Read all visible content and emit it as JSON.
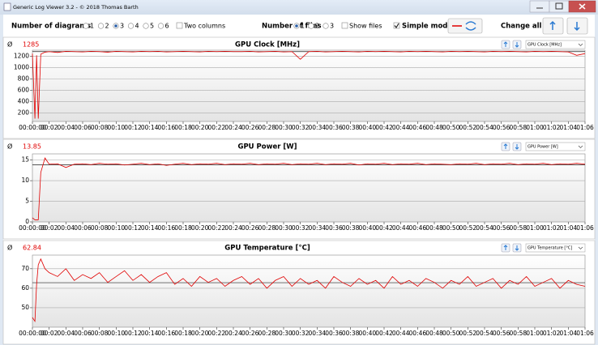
{
  "window": {
    "title": "Generic Log Viewer 3.2 - © 2018 Thomas Barth"
  },
  "toolbar": {
    "diagrams_label": "Number of diagrams",
    "diagram_options": [
      "1",
      "2",
      "3",
      "4",
      "5",
      "6"
    ],
    "diagrams_selected": 2,
    "two_columns": "Two columns",
    "two_columns_checked": false,
    "files_label": "Number of files",
    "file_options": [
      "1",
      "2",
      "3"
    ],
    "files_selected": 0,
    "show_files": "Show files",
    "show_files_checked": false,
    "simple_mode": "Simple mode",
    "simple_mode_checked": true,
    "change_all": "Change all"
  },
  "chart_data": [
    {
      "type": "line",
      "title": "GPU Clock [MHz]",
      "avg_symbol": "Ø",
      "average": 1285,
      "x": [
        0,
        0.3,
        0.5,
        0.7,
        1,
        1.5,
        2,
        3,
        4,
        5,
        6,
        7,
        8,
        9,
        10,
        11,
        12,
        13,
        14,
        15,
        16,
        17,
        18,
        19,
        20,
        21,
        22,
        23,
        24,
        25,
        26,
        27,
        28,
        29,
        30,
        31,
        32,
        33,
        34,
        35,
        36,
        37,
        38,
        39,
        40,
        41,
        42,
        43,
        44,
        45,
        46,
        47,
        48,
        49,
        50,
        51,
        52,
        53,
        54,
        55,
        56,
        57,
        58,
        59,
        60,
        61,
        62,
        63,
        64,
        65,
        66
      ],
      "series": [
        {
          "name": "GPU Clock [MHz]",
          "color": "#e00000",
          "values": [
            1250,
            100,
            1220,
            100,
            1240,
            1275,
            1285,
            1270,
            1290,
            1285,
            1280,
            1290,
            1285,
            1275,
            1290,
            1285,
            1280,
            1290,
            1285,
            1290,
            1280,
            1285,
            1290,
            1285,
            1280,
            1290,
            1285,
            1290,
            1285,
            1285,
            1290,
            1280,
            1285,
            1290,
            1280,
            1285,
            1150,
            1285,
            1290,
            1280,
            1285,
            1290,
            1285,
            1280,
            1290,
            1285,
            1290,
            1285,
            1280,
            1290,
            1285,
            1290,
            1285,
            1280,
            1290,
            1285,
            1290,
            1285,
            1280,
            1290,
            1285,
            1290,
            1285,
            1280,
            1290,
            1285,
            1290,
            1285,
            1280,
            1220,
            1250
          ]
        }
      ],
      "xlim": [
        0,
        66
      ],
      "ylim": [
        50,
        1310
      ],
      "yticks": [
        200,
        400,
        600,
        800,
        1000,
        1200
      ],
      "grid": true,
      "xticks": [
        {
          "value": 0,
          "label": "00:00:00"
        },
        {
          "value": 2,
          "label": "00:02"
        },
        {
          "value": 4,
          "label": "00:04"
        },
        {
          "value": 6,
          "label": "00:06"
        },
        {
          "value": 8,
          "label": "00:08"
        },
        {
          "value": 10,
          "label": "00:10"
        },
        {
          "value": 12,
          "label": "00:12"
        },
        {
          "value": 14,
          "label": "00:14"
        },
        {
          "value": 16,
          "label": "00:16"
        },
        {
          "value": 18,
          "label": "00:18"
        },
        {
          "value": 20,
          "label": "00:20"
        },
        {
          "value": 22,
          "label": "00:22"
        },
        {
          "value": 24,
          "label": "00:24"
        },
        {
          "value": 26,
          "label": "00:26"
        },
        {
          "value": 28,
          "label": "00:28"
        },
        {
          "value": 30,
          "label": "00:30"
        },
        {
          "value": 32,
          "label": "00:32"
        },
        {
          "value": 34,
          "label": "00:34"
        },
        {
          "value": 36,
          "label": "00:36"
        },
        {
          "value": 38,
          "label": "00:38"
        },
        {
          "value": 40,
          "label": "00:40"
        },
        {
          "value": 42,
          "label": "00:42"
        },
        {
          "value": 44,
          "label": "00:44"
        },
        {
          "value": 46,
          "label": "00:46"
        },
        {
          "value": 48,
          "label": "00:48"
        },
        {
          "value": 50,
          "label": "00:50"
        },
        {
          "value": 52,
          "label": "00:52"
        },
        {
          "value": 54,
          "label": "00:54"
        },
        {
          "value": 56,
          "label": "00:56"
        },
        {
          "value": 58,
          "label": "00:58"
        },
        {
          "value": 60,
          "label": "01:00"
        },
        {
          "value": 62,
          "label": "01:02"
        },
        {
          "value": 64,
          "label": "01:04"
        },
        {
          "value": 66,
          "label": "01:06"
        }
      ]
    },
    {
      "type": "line",
      "title": "GPU Power [W]",
      "avg_symbol": "Ø",
      "average": 13.85,
      "x": [
        0,
        0.3,
        0.5,
        0.7,
        1,
        1.5,
        2,
        3,
        4,
        5,
        6,
        7,
        8,
        9,
        10,
        11,
        12,
        13,
        14,
        15,
        16,
        17,
        18,
        19,
        20,
        21,
        22,
        23,
        24,
        25,
        26,
        27,
        28,
        29,
        30,
        31,
        32,
        33,
        34,
        35,
        36,
        37,
        38,
        39,
        40,
        41,
        42,
        43,
        44,
        45,
        46,
        47,
        48,
        49,
        50,
        51,
        52,
        53,
        54,
        55,
        56,
        57,
        58,
        59,
        60,
        61,
        62,
        63,
        64,
        65,
        66
      ],
      "series": [
        {
          "name": "GPU Power [W]",
          "color": "#e00000",
          "values": [
            1,
            0.5,
            0.5,
            0.5,
            12,
            15.5,
            14.0,
            14.1,
            13.2,
            14.0,
            14.1,
            13.9,
            14.2,
            14.0,
            14.1,
            13.8,
            14.0,
            14.2,
            13.9,
            14.1,
            13.7,
            14.0,
            14.2,
            13.9,
            14.1,
            14.0,
            14.2,
            13.9,
            14.1,
            14.0,
            14.2,
            13.9,
            14.1,
            14.0,
            14.2,
            13.9,
            14.1,
            14.0,
            14.2,
            13.9,
            14.1,
            14.0,
            14.2,
            13.8,
            14.1,
            14.0,
            14.2,
            13.9,
            14.1,
            14.0,
            14.2,
            13.9,
            14.1,
            14.0,
            13.9,
            14.1,
            14.0,
            14.2,
            13.9,
            14.1,
            14.0,
            14.2,
            13.9,
            14.1,
            14.0,
            14.2,
            13.9,
            14.1,
            14.0,
            14.2,
            14.0
          ]
        }
      ],
      "xlim": [
        0,
        66
      ],
      "ylim": [
        0,
        16.5
      ],
      "yticks": [
        0,
        5,
        10,
        15
      ],
      "grid": true,
      "xticks": [
        {
          "value": 0,
          "label": "00:00:00"
        },
        {
          "value": 2,
          "label": "00:02"
        },
        {
          "value": 4,
          "label": "00:04"
        },
        {
          "value": 6,
          "label": "00:06"
        },
        {
          "value": 8,
          "label": "00:08"
        },
        {
          "value": 10,
          "label": "00:10"
        },
        {
          "value": 12,
          "label": "00:12"
        },
        {
          "value": 14,
          "label": "00:14"
        },
        {
          "value": 16,
          "label": "00:16"
        },
        {
          "value": 18,
          "label": "00:18"
        },
        {
          "value": 20,
          "label": "00:20"
        },
        {
          "value": 22,
          "label": "00:22"
        },
        {
          "value": 24,
          "label": "00:24"
        },
        {
          "value": 26,
          "label": "00:26"
        },
        {
          "value": 28,
          "label": "00:28"
        },
        {
          "value": 30,
          "label": "00:30"
        },
        {
          "value": 32,
          "label": "00:32"
        },
        {
          "value": 34,
          "label": "00:34"
        },
        {
          "value": 36,
          "label": "00:36"
        },
        {
          "value": 38,
          "label": "00:38"
        },
        {
          "value": 40,
          "label": "00:40"
        },
        {
          "value": 42,
          "label": "00:42"
        },
        {
          "value": 44,
          "label": "00:44"
        },
        {
          "value": 46,
          "label": "00:46"
        },
        {
          "value": 48,
          "label": "00:48"
        },
        {
          "value": 50,
          "label": "00:50"
        },
        {
          "value": 52,
          "label": "00:52"
        },
        {
          "value": 54,
          "label": "00:54"
        },
        {
          "value": 56,
          "label": "00:56"
        },
        {
          "value": 58,
          "label": "00:58"
        },
        {
          "value": 60,
          "label": "01:00"
        },
        {
          "value": 62,
          "label": "01:02"
        },
        {
          "value": 64,
          "label": "01:04"
        },
        {
          "value": 66,
          "label": "01:06"
        }
      ]
    },
    {
      "type": "line",
      "title": "GPU Temperature [°C]",
      "avg_symbol": "Ø",
      "average": 62.84,
      "x": [
        0,
        0.3,
        0.5,
        0.7,
        1,
        1.5,
        2,
        3,
        4,
        5,
        6,
        7,
        8,
        9,
        10,
        11,
        12,
        13,
        14,
        15,
        16,
        17,
        18,
        19,
        20,
        21,
        22,
        23,
        24,
        25,
        26,
        27,
        28,
        29,
        30,
        31,
        32,
        33,
        34,
        35,
        36,
        37,
        38,
        39,
        40,
        41,
        42,
        43,
        44,
        45,
        46,
        47,
        48,
        49,
        50,
        51,
        52,
        53,
        54,
        55,
        56,
        57,
        58,
        59,
        60,
        61,
        62,
        63,
        64,
        65,
        66
      ],
      "series": [
        {
          "name": "GPU Temperature [°C]",
          "color": "#e00000",
          "values": [
            45,
            43,
            62,
            72,
            75,
            70,
            68,
            66,
            70,
            64,
            67,
            65,
            68,
            63,
            66,
            69,
            64,
            67,
            63,
            66,
            68,
            62,
            65,
            61,
            66,
            63,
            65,
            61,
            64,
            66,
            62,
            65,
            60,
            64,
            66,
            61,
            65,
            62,
            64,
            60,
            66,
            63,
            61,
            65,
            62,
            64,
            60,
            66,
            62,
            64,
            61,
            65,
            63,
            60,
            64,
            62,
            66,
            61,
            63,
            65,
            60,
            64,
            62,
            66,
            61,
            63,
            65,
            60,
            64,
            62,
            61
          ]
        }
      ],
      "xlim": [
        0,
        66
      ],
      "ylim": [
        40,
        77
      ],
      "yticks": [
        50,
        60,
        70
      ],
      "grid": true,
      "xticks": [
        {
          "value": 0,
          "label": "00:00:00"
        },
        {
          "value": 2,
          "label": "00:02"
        },
        {
          "value": 4,
          "label": "00:04"
        },
        {
          "value": 6,
          "label": "00:06"
        },
        {
          "value": 8,
          "label": "00:08"
        },
        {
          "value": 10,
          "label": "00:10"
        },
        {
          "value": 12,
          "label": "00:12"
        },
        {
          "value": 14,
          "label": "00:14"
        },
        {
          "value": 16,
          "label": "00:16"
        },
        {
          "value": 18,
          "label": "00:18"
        },
        {
          "value": 20,
          "label": "00:20"
        },
        {
          "value": 22,
          "label": "00:22"
        },
        {
          "value": 24,
          "label": "00:24"
        },
        {
          "value": 26,
          "label": "00:26"
        },
        {
          "value": 28,
          "label": "00:28"
        },
        {
          "value": 30,
          "label": "00:30"
        },
        {
          "value": 32,
          "label": "00:32"
        },
        {
          "value": 34,
          "label": "00:34"
        },
        {
          "value": 36,
          "label": "00:36"
        },
        {
          "value": 38,
          "label": "00:38"
        },
        {
          "value": 40,
          "label": "00:40"
        },
        {
          "value": 42,
          "label": "00:42"
        },
        {
          "value": 44,
          "label": "00:44"
        },
        {
          "value": 46,
          "label": "00:46"
        },
        {
          "value": 48,
          "label": "00:48"
        },
        {
          "value": 50,
          "label": "00:50"
        },
        {
          "value": 52,
          "label": "00:52"
        },
        {
          "value": 54,
          "label": "00:54"
        },
        {
          "value": 56,
          "label": "00:56"
        },
        {
          "value": 58,
          "label": "00:58"
        },
        {
          "value": 60,
          "label": "01:00"
        },
        {
          "value": 62,
          "label": "01:02"
        },
        {
          "value": 64,
          "label": "01:04"
        },
        {
          "value": 66,
          "label": "01:06"
        }
      ]
    }
  ]
}
